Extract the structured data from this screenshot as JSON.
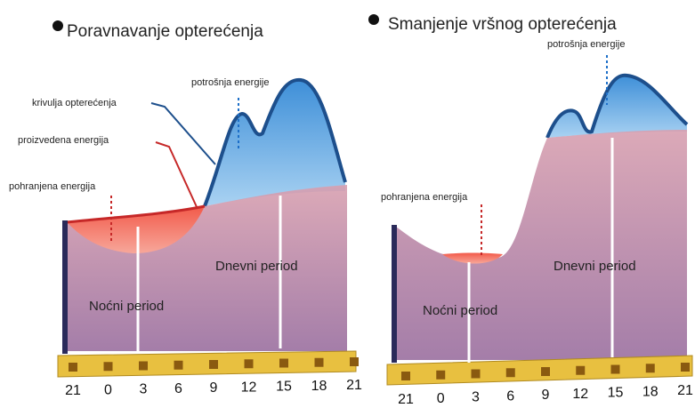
{
  "panels": [
    {
      "title": "Poravnavanje opterećenja",
      "labels": {
        "consumption": "potrošnja energije",
        "load_curve": "krivulja opterećenja",
        "produced": "proizvedena energija",
        "stored": "pohranjena energija",
        "day": "Dnevni period",
        "night": "Noćni period"
      },
      "hours": [
        "21",
        "0",
        "3",
        "6",
        "9",
        "12",
        "15",
        "18",
        "21"
      ]
    },
    {
      "title": "Smanjenje vršnog opterećenja",
      "labels": {
        "consumption": "potrošnja energije",
        "stored": "pohranjena energija",
        "day": "Dnevni period",
        "night": "Noćni period"
      },
      "hours": [
        "21",
        "0",
        "3",
        "6",
        "9",
        "12",
        "15",
        "18",
        "21"
      ]
    }
  ]
}
